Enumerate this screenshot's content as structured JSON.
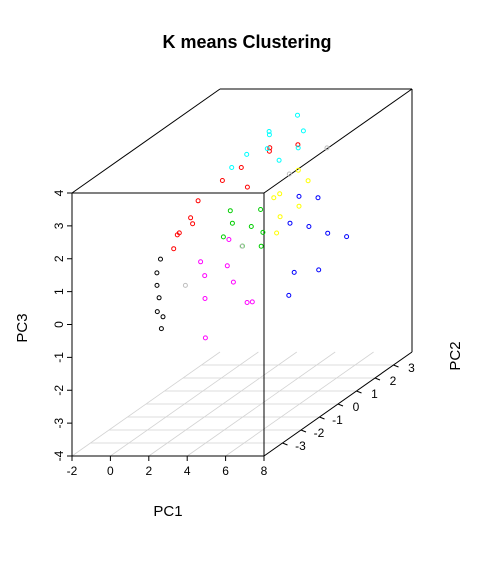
{
  "chart_data": {
    "type": "scatter",
    "title": "K means Clustering",
    "xlabel": "PC1",
    "ylabel": "PC2",
    "zlabel": "PC3",
    "xlim": [
      -2,
      8
    ],
    "ylim": [
      -4,
      4
    ],
    "zlim": [
      -4,
      4
    ],
    "x_ticks": [
      "-2",
      "0",
      "2",
      "4",
      "6",
      "8"
    ],
    "y_ticks": [
      "-3",
      "-2",
      "-1",
      "0",
      "1",
      "2",
      "3"
    ],
    "z_ticks": [
      "-4",
      "-3",
      "-2",
      "-1",
      "0",
      "1",
      "2",
      "3",
      "4"
    ],
    "grid": "xy-plane",
    "marker": "open-circle",
    "series": [
      {
        "color": "#ff0000",
        "points": [
          [
            0.9,
            -0.6,
            1.9
          ],
          [
            0.5,
            -0.9,
            1.5
          ],
          [
            2.5,
            2.0,
            2.9
          ],
          [
            1.0,
            -0.3,
            2.3
          ],
          [
            3.0,
            1.5,
            3.2
          ],
          [
            1.5,
            0.5,
            2.6
          ],
          [
            0.6,
            -1.2,
            1.2
          ],
          [
            2.0,
            1.0,
            2.8
          ],
          [
            3.5,
            2.5,
            2.9
          ],
          [
            1.2,
            -0.8,
            1.8
          ],
          [
            0.7,
            -1.0,
            1.6
          ],
          [
            2.8,
            0.5,
            2.4
          ]
        ]
      },
      {
        "color": "#00ffff",
        "points": [
          [
            2.0,
            2.5,
            3.3
          ],
          [
            3.0,
            3.0,
            3.6
          ],
          [
            1.8,
            1.5,
            3.0
          ],
          [
            2.5,
            2.0,
            3.4
          ],
          [
            3.5,
            2.8,
            3.2
          ],
          [
            1.5,
            1.0,
            2.8
          ],
          [
            2.2,
            2.2,
            2.9
          ],
          [
            4.0,
            2.0,
            3.0
          ],
          [
            3.2,
            1.8,
            2.7
          ]
        ]
      },
      {
        "color": "#ff00ff",
        "points": [
          [
            2.5,
            -1.5,
            0.5
          ],
          [
            3.0,
            -2.0,
            0.0
          ],
          [
            4.5,
            -1.0,
            -0.5
          ],
          [
            2.0,
            -1.2,
            0.8
          ],
          [
            3.5,
            -2.5,
            -1.0
          ],
          [
            5.0,
            -1.8,
            -0.2
          ],
          [
            2.8,
            -0.5,
            1.2
          ],
          [
            4.0,
            -1.5,
            0.3
          ],
          [
            3.2,
            -1.0,
            0.6
          ]
        ]
      },
      {
        "color": "#0000ff",
        "points": [
          [
            6.0,
            0.5,
            1.2
          ],
          [
            6.5,
            1.0,
            0.8
          ],
          [
            5.5,
            0.0,
            1.5
          ],
          [
            7.0,
            1.5,
            0.5
          ],
          [
            6.2,
            -0.5,
            0.2
          ],
          [
            5.8,
            1.2,
            1.8
          ],
          [
            6.8,
            0.2,
            0.0
          ],
          [
            5.2,
            0.8,
            2.0
          ],
          [
            6.4,
            -1.0,
            -0.3
          ]
        ]
      },
      {
        "color": "#00cd00",
        "points": [
          [
            2.5,
            0.0,
            1.5
          ],
          [
            3.0,
            0.5,
            1.2
          ],
          [
            3.5,
            -0.5,
            1.0
          ],
          [
            2.2,
            0.2,
            1.8
          ],
          [
            4.0,
            0.0,
            0.8
          ],
          [
            2.8,
            -0.8,
            1.4
          ],
          [
            3.2,
            0.8,
            1.6
          ],
          [
            3.8,
            0.3,
            1.1
          ]
        ]
      },
      {
        "color": "#ffff00",
        "points": [
          [
            4.0,
            1.0,
            2.0
          ],
          [
            4.5,
            0.5,
            1.5
          ],
          [
            5.0,
            1.5,
            2.2
          ],
          [
            3.5,
            1.2,
            1.8
          ],
          [
            4.8,
            0.0,
            1.2
          ],
          [
            4.2,
            1.8,
            2.4
          ],
          [
            5.2,
            0.8,
            1.7
          ]
        ]
      },
      {
        "color": "#000000",
        "points": [
          [
            0.2,
            -1.5,
            1.0
          ],
          [
            0.5,
            -2.0,
            0.4
          ],
          [
            1.0,
            -2.5,
            -0.2
          ],
          [
            0.3,
            -1.8,
            0.7
          ],
          [
            1.5,
            -2.8,
            -0.6
          ],
          [
            0.8,
            -2.2,
            0.1
          ],
          [
            1.2,
            -2.4,
            -0.4
          ]
        ]
      },
      {
        "color": "#bebebe",
        "points": [
          [
            3.0,
            0.0,
            0.8
          ],
          [
            4.5,
            1.0,
            2.6
          ],
          [
            1.5,
            -1.5,
            0.2
          ],
          [
            5.5,
            2.0,
            3.0
          ]
        ]
      }
    ]
  }
}
